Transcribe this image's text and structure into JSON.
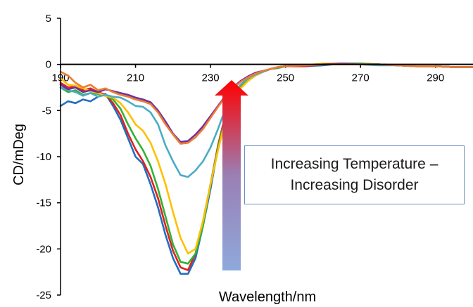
{
  "chart_data": {
    "type": "line",
    "title": "",
    "xlabel": "Wavelength/nm",
    "ylabel": "CD/mDeg",
    "xlim": [
      190,
      300
    ],
    "ylim": [
      -25,
      5
    ],
    "x_ticks": [
      190,
      210,
      230,
      250,
      270,
      290
    ],
    "y_ticks": [
      5,
      0,
      -5,
      -10,
      -15,
      -20,
      -25
    ],
    "grid": false,
    "legend": "none",
    "annotation": {
      "lines": [
        "Increasing Temperature –",
        "Increasing Disorder"
      ],
      "arrow": "up"
    },
    "series": [
      {
        "color": "#1f6fbf",
        "x": [
          190,
          192,
          194,
          196,
          198,
          200,
          202,
          204,
          206,
          208,
          210,
          212,
          214,
          216,
          218,
          220,
          222,
          224,
          226,
          228,
          230,
          232,
          234,
          236,
          238,
          240,
          242,
          244,
          246,
          248,
          250,
          255,
          260,
          265,
          270,
          275,
          280,
          285,
          290,
          295,
          300
        ],
        "y": [
          -4.5,
          -4,
          -4.2,
          -3.8,
          -4,
          -3.5,
          -3.2,
          -4.5,
          -6,
          -8,
          -10,
          -10.8,
          -13,
          -15.5,
          -18.5,
          -21,
          -22.7,
          -22.7,
          -21,
          -17.5,
          -13.5,
          -9,
          -5.5,
          -3.5,
          -2.5,
          -1.6,
          -1.1,
          -0.8,
          -0.5,
          -0.3,
          -0.2,
          -0.2,
          -0.1,
          0.1,
          0.1,
          0,
          -0.1,
          -0.2,
          -0.2,
          -0.3,
          -0.3
        ]
      },
      {
        "color": "#e02020",
        "x": [
          190,
          192,
          194,
          196,
          198,
          200,
          202,
          204,
          206,
          208,
          210,
          212,
          214,
          216,
          218,
          220,
          222,
          224,
          226,
          228,
          230,
          232,
          234,
          236,
          238,
          240,
          242,
          244,
          246,
          248,
          250,
          255,
          260,
          265,
          270,
          275,
          280,
          285,
          290,
          295,
          300
        ],
        "y": [
          -2,
          -2.5,
          -2.4,
          -2.8,
          -2.6,
          -3,
          -3.3,
          -4.2,
          -5.5,
          -7.5,
          -9.2,
          -10.5,
          -12.2,
          -14.5,
          -17.5,
          -20.2,
          -22,
          -22.3,
          -20.5,
          -17,
          -13,
          -8.8,
          -5.4,
          -3.4,
          -2.4,
          -1.6,
          -1.1,
          -0.8,
          -0.5,
          -0.3,
          -0.2,
          -0.2,
          0,
          0,
          0,
          0,
          -0.1,
          -0.2,
          -0.2,
          -0.3,
          -0.3
        ]
      },
      {
        "color": "#33b233",
        "x": [
          190,
          192,
          194,
          196,
          198,
          200,
          202,
          204,
          206,
          208,
          210,
          212,
          214,
          216,
          218,
          220,
          222,
          224,
          226,
          228,
          230,
          232,
          234,
          236,
          238,
          240,
          242,
          244,
          246,
          248,
          250,
          255,
          260,
          265,
          270,
          275,
          280,
          285,
          290,
          295,
          300
        ],
        "y": [
          -2.5,
          -3,
          -2.8,
          -3.3,
          -3.1,
          -3.2,
          -3.4,
          -3.8,
          -4.8,
          -6.5,
          -8,
          -9.3,
          -11,
          -13.5,
          -16.5,
          -19.5,
          -21.4,
          -21.6,
          -20.5,
          -17.5,
          -13,
          -9,
          -5.7,
          -3.6,
          -2.5,
          -1.7,
          -1.2,
          -0.8,
          -0.5,
          -0.4,
          -0.2,
          -0.1,
          0,
          0.1,
          0.1,
          0,
          -0.1,
          -0.2,
          -0.2,
          -0.3,
          -0.3
        ]
      },
      {
        "color": "#ffc000",
        "x": [
          190,
          192,
          194,
          196,
          198,
          200,
          202,
          204,
          206,
          208,
          210,
          212,
          214,
          216,
          218,
          220,
          222,
          224,
          226,
          228,
          230,
          232,
          234,
          236,
          238,
          240,
          242,
          244,
          246,
          248,
          250,
          255,
          260,
          265,
          270,
          275,
          280,
          285,
          290,
          295,
          300
        ],
        "y": [
          -1.5,
          -2.2,
          -2.3,
          -2.6,
          -2.9,
          -3.1,
          -3.4,
          -3.6,
          -4.2,
          -5.2,
          -6.5,
          -7.2,
          -8.5,
          -10.5,
          -13,
          -16,
          -18.8,
          -20.5,
          -20,
          -17,
          -13,
          -9.3,
          -6,
          -3.8,
          -2.6,
          -1.8,
          -1.2,
          -0.8,
          -0.5,
          -0.3,
          -0.2,
          -0.1,
          0.1,
          0.1,
          0,
          0,
          -0.1,
          -0.2,
          -0.2,
          -0.3,
          -0.3
        ]
      },
      {
        "color": "#4bacc6",
        "x": [
          190,
          192,
          194,
          196,
          198,
          200,
          202,
          204,
          206,
          208,
          210,
          212,
          214,
          216,
          218,
          220,
          222,
          224,
          226,
          228,
          230,
          232,
          234,
          236,
          238,
          240,
          242,
          244,
          246,
          248,
          250,
          255,
          260,
          265,
          270,
          275,
          280,
          285,
          290,
          295,
          300
        ],
        "y": [
          -2.5,
          -2.8,
          -3,
          -3.4,
          -3.1,
          -3.5,
          -3.3,
          -3.5,
          -3.6,
          -4,
          -4.5,
          -4.6,
          -5.2,
          -6.5,
          -8.8,
          -10.5,
          -12,
          -12.2,
          -11.5,
          -10.5,
          -9,
          -7,
          -4.8,
          -3.2,
          -2.2,
          -1.5,
          -1.1,
          -0.8,
          -0.5,
          -0.3,
          -0.2,
          -0.1,
          0,
          0,
          0,
          -0.1,
          -0.1,
          -0.2,
          -0.2,
          -0.3,
          -0.3
        ]
      },
      {
        "color": "#7030a0",
        "x": [
          190,
          192,
          194,
          196,
          198,
          200,
          202,
          204,
          206,
          208,
          210,
          212,
          214,
          216,
          218,
          220,
          222,
          224,
          226,
          228,
          230,
          232,
          234,
          236,
          238,
          240,
          242,
          244,
          246,
          248,
          250,
          255,
          260,
          265,
          270,
          275,
          280,
          285,
          290,
          295,
          300
        ],
        "y": [
          -2.2,
          -2.7,
          -2.5,
          -3,
          -2.8,
          -3,
          -2.7,
          -2.9,
          -3.1,
          -3.3,
          -3.6,
          -3.8,
          -4.1,
          -5,
          -6.2,
          -7.5,
          -8.4,
          -8.3,
          -7.6,
          -6.7,
          -5.6,
          -4.5,
          -3.4,
          -2.5,
          -1.8,
          -1.3,
          -0.9,
          -0.7,
          -0.5,
          -0.3,
          -0.2,
          -0.1,
          0,
          0.1,
          0,
          0,
          -0.1,
          -0.2,
          -0.2,
          -0.3,
          -0.3
        ]
      },
      {
        "color": "#ed7d31",
        "x": [
          190,
          192,
          194,
          196,
          198,
          200,
          202,
          204,
          206,
          208,
          210,
          212,
          214,
          216,
          218,
          220,
          222,
          224,
          226,
          228,
          230,
          232,
          234,
          236,
          238,
          240,
          242,
          244,
          246,
          248,
          250,
          255,
          260,
          265,
          270,
          275,
          280,
          285,
          290,
          295,
          300
        ],
        "y": [
          -0.8,
          -1.2,
          -2,
          -2.5,
          -2.2,
          -2.8,
          -2.6,
          -3,
          -3.3,
          -3.5,
          -3.8,
          -4,
          -4.3,
          -5.2,
          -6.5,
          -7.6,
          -8.6,
          -8.5,
          -7.9,
          -7,
          -5.8,
          -4.6,
          -3.5,
          -2.6,
          -1.9,
          -1.4,
          -1,
          -0.7,
          -0.5,
          -0.3,
          -0.2,
          -0.1,
          0,
          0,
          0,
          0,
          -0.1,
          -0.2,
          -0.2,
          -0.3,
          -0.3
        ]
      }
    ]
  }
}
